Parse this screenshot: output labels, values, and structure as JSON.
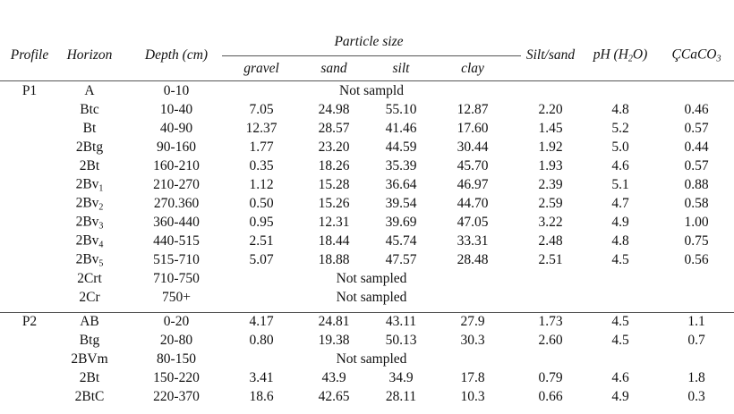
{
  "table": {
    "header": {
      "profile": "Profile",
      "horizon": "Horizon",
      "depth": "Depth (cm)",
      "particle_size": "Particle size",
      "particle_columns": [
        "gravel",
        "sand",
        "silt",
        "clay"
      ],
      "silt_sand": "Silt/sand",
      "ph": {
        "pre": "pH (H",
        "sub": "2",
        "post": "O)"
      },
      "caco3": {
        "text": "ÇCaCO",
        "sub": "3"
      }
    },
    "groups": [
      {
        "profile": "P1",
        "rows": [
          {
            "horizon": "A",
            "depth": "0-10",
            "note": "Not sampld"
          },
          {
            "horizon": "Btc",
            "depth": "10-40",
            "cells": [
              "7.05",
              "24.98",
              "55.10",
              "12.87",
              "2.20",
              "4.8",
              "0.46"
            ]
          },
          {
            "horizon": "Bt",
            "depth": "40-90",
            "cells": [
              "12.37",
              "28.57",
              "41.46",
              "17.60",
              "1.45",
              "5.2",
              "0.57"
            ]
          },
          {
            "horizon": "2Btg",
            "depth": "90-160",
            "cells": [
              "1.77",
              "23.20",
              "44.59",
              "30.44",
              "1.92",
              "5.0",
              "0.44"
            ]
          },
          {
            "horizon": "2Bt",
            "depth": "160-210",
            "cells": [
              "0.35",
              "18.26",
              "35.39",
              "45.70",
              "1.93",
              "4.6",
              "0.57"
            ]
          },
          {
            "horizon": "2Bv",
            "horizon_sub": "1",
            "depth": "210-270",
            "cells": [
              "1.12",
              "15.28",
              "36.64",
              "46.97",
              "2.39",
              "5.1",
              "0.88"
            ]
          },
          {
            "horizon": "2Bv",
            "horizon_sub": "2",
            "depth": "270.360",
            "cells": [
              "0.50",
              "15.26",
              "39.54",
              "44.70",
              "2.59",
              "4.7",
              "0.58"
            ]
          },
          {
            "horizon": "2Bv",
            "horizon_sub": "3",
            "depth": "360-440",
            "cells": [
              "0.95",
              "12.31",
              "39.69",
              "47.05",
              "3.22",
              "4.9",
              "1.00"
            ]
          },
          {
            "horizon": "2Bv",
            "horizon_sub": "4",
            "depth": "440-515",
            "cells": [
              "2.51",
              "18.44",
              "45.74",
              "33.31",
              "2.48",
              "4.8",
              "0.75"
            ]
          },
          {
            "horizon": "2Bv",
            "horizon_sub": "5",
            "depth": "515-710",
            "cells": [
              "5.07",
              "18.88",
              "47.57",
              "28.48",
              "2.51",
              "4.5",
              "0.56"
            ]
          },
          {
            "horizon": "2Crt",
            "depth": "710-750",
            "note": "Not sampled"
          },
          {
            "horizon": "2Cr",
            "depth": "750+",
            "note": "Not sampled"
          }
        ]
      },
      {
        "profile": "P2",
        "rows": [
          {
            "horizon": "AB",
            "depth": "0-20",
            "cells": [
              "4.17",
              "24.81",
              "43.11",
              "27.9",
              "1.73",
              "4.5",
              "1.1"
            ]
          },
          {
            "horizon": "Btg",
            "depth": "20-80",
            "cells": [
              "0.80",
              "19.38",
              "50.13",
              "30.3",
              "2.60",
              "4.5",
              "0.7"
            ]
          },
          {
            "horizon": "2BVm",
            "depth": "80-150",
            "note": "Not sampled"
          },
          {
            "horizon": "2Bt",
            "depth": "150-220",
            "cells": [
              "3.41",
              "43.9",
              "34.9",
              "17.8",
              "0.79",
              "4.6",
              "1.8"
            ]
          },
          {
            "horizon": "2BtC",
            "depth": "220-370",
            "cells": [
              "18.6",
              "42.65",
              "28.11",
              "10.3",
              "0.66",
              "4.9",
              "0.3"
            ]
          }
        ]
      }
    ]
  }
}
